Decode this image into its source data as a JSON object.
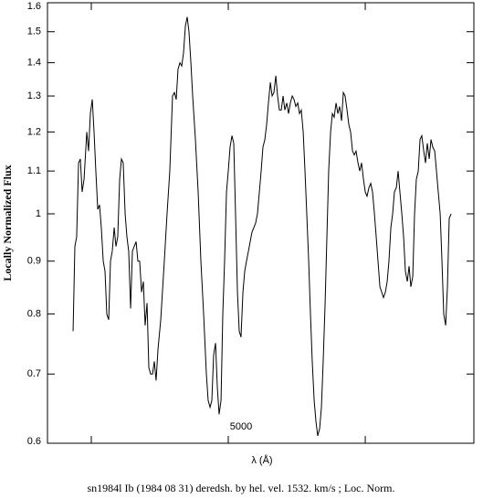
{
  "chart_data": {
    "type": "line",
    "ylabel": "Locally Normalized Flux",
    "xlabel": "λ (Å)",
    "caption": "sn1984l Ib (1984 08 31) deredsh. by hel. vel.  1532. km/s ;  Loc. Norm.",
    "log_y": true,
    "color": "#000000",
    "xlim": [
      3680,
      6793
    ],
    "xticks": [
      {
        "value": 4000,
        "label": null
      },
      5000,
      {
        "value": 6000,
        "label": null
      }
    ],
    "ylim": [
      0.6,
      1.6
    ],
    "yticks": [
      0.6,
      0.7,
      0.8,
      0.9,
      1,
      1.1,
      1.2,
      1.3,
      1.4,
      1.5,
      1.6
    ],
    "x": [
      3867,
      3880,
      3893,
      3907,
      3920,
      3933,
      3947,
      3967,
      3980,
      3993,
      4007,
      4020,
      4033,
      4047,
      4060,
      4073,
      4087,
      4100,
      4113,
      4127,
      4140,
      4153,
      4167,
      4180,
      4193,
      4207,
      4220,
      4233,
      4247,
      4260,
      4273,
      4287,
      4300,
      4313,
      4327,
      4340,
      4353,
      4367,
      4380,
      4393,
      4407,
      4420,
      4433,
      4447,
      4460,
      4473,
      4487,
      4507,
      4533,
      4553,
      4573,
      4593,
      4607,
      4620,
      4633,
      4647,
      4660,
      4673,
      4687,
      4700,
      4713,
      4727,
      4740,
      4760,
      4780,
      4800,
      4820,
      4840,
      4853,
      4867,
      4880,
      4893,
      4907,
      4920,
      4933,
      4947,
      4960,
      4973,
      4987,
      5000,
      5013,
      5027,
      5040,
      5053,
      5067,
      5080,
      5093,
      5107,
      5120,
      5133,
      5147,
      5160,
      5173,
      5187,
      5200,
      5213,
      5227,
      5240,
      5253,
      5267,
      5280,
      5293,
      5307,
      5320,
      5333,
      5347,
      5360,
      5373,
      5387,
      5400,
      5413,
      5427,
      5440,
      5453,
      5467,
      5480,
      5493,
      5507,
      5520,
      5533,
      5547,
      5560,
      5573,
      5587,
      5600,
      5613,
      5627,
      5640,
      5653,
      5667,
      5680,
      5693,
      5707,
      5720,
      5733,
      5747,
      5760,
      5773,
      5787,
      5800,
      5813,
      5827,
      5840,
      5853,
      5867,
      5880,
      5893,
      5907,
      5920,
      5933,
      5947,
      5960,
      5973,
      5987,
      6000,
      6013,
      6027,
      6040,
      6053,
      6067,
      6080,
      6093,
      6107,
      6120,
      6133,
      6147,
      6160,
      6173,
      6187,
      6200,
      6213,
      6227,
      6240,
      6253,
      6267,
      6280,
      6293,
      6307,
      6320,
      6333,
      6347,
      6360,
      6373,
      6387,
      6400,
      6413,
      6427,
      6440,
      6453,
      6467,
      6480,
      6493,
      6507,
      6520,
      6533,
      6547,
      6560,
      6573,
      6587,
      6600,
      6613,
      6627
    ],
    "values": [
      0.77,
      0.93,
      0.95,
      1.12,
      1.13,
      1.05,
      1.08,
      1.2,
      1.15,
      1.25,
      1.29,
      1.2,
      1.1,
      1.01,
      1.02,
      0.97,
      0.9,
      0.88,
      0.8,
      0.79,
      0.9,
      0.92,
      0.97,
      0.93,
      0.95,
      1.08,
      1.13,
      1.12,
      1.0,
      0.95,
      0.92,
      0.81,
      0.92,
      0.93,
      0.94,
      0.9,
      0.9,
      0.84,
      0.86,
      0.78,
      0.82,
      0.71,
      0.7,
      0.7,
      0.72,
      0.69,
      0.74,
      0.79,
      0.9,
      1.0,
      1.1,
      1.3,
      1.31,
      1.29,
      1.38,
      1.4,
      1.39,
      1.43,
      1.52,
      1.55,
      1.5,
      1.4,
      1.3,
      1.18,
      1.05,
      0.9,
      0.8,
      0.7,
      0.66,
      0.65,
      0.66,
      0.73,
      0.75,
      0.68,
      0.64,
      0.66,
      0.8,
      0.9,
      1.05,
      1.1,
      1.16,
      1.19,
      1.17,
      1.0,
      0.84,
      0.77,
      0.76,
      0.84,
      0.88,
      0.9,
      0.92,
      0.94,
      0.96,
      0.97,
      0.98,
      1.0,
      1.05,
      1.1,
      1.16,
      1.18,
      1.22,
      1.28,
      1.34,
      1.3,
      1.31,
      1.36,
      1.3,
      1.26,
      1.26,
      1.3,
      1.26,
      1.28,
      1.25,
      1.28,
      1.3,
      1.29,
      1.27,
      1.28,
      1.25,
      1.26,
      1.2,
      1.1,
      1.0,
      0.9,
      0.8,
      0.72,
      0.66,
      0.63,
      0.61,
      0.62,
      0.65,
      0.72,
      0.82,
      0.95,
      1.1,
      1.2,
      1.25,
      1.24,
      1.28,
      1.25,
      1.27,
      1.23,
      1.31,
      1.3,
      1.26,
      1.22,
      1.2,
      1.15,
      1.14,
      1.15,
      1.12,
      1.1,
      1.12,
      1.08,
      1.05,
      1.04,
      1.06,
      1.07,
      1.05,
      1.0,
      0.95,
      0.9,
      0.85,
      0.84,
      0.83,
      0.84,
      0.86,
      0.9,
      0.97,
      1.0,
      1.05,
      1.06,
      1.1,
      1.05,
      1.0,
      0.95,
      0.88,
      0.86,
      0.89,
      0.85,
      0.87,
      1.0,
      1.08,
      1.1,
      1.18,
      1.19,
      1.15,
      1.12,
      1.17,
      1.13,
      1.18,
      1.16,
      1.15,
      1.1,
      1.05,
      1.0,
      0.9,
      0.8,
      0.78,
      0.85,
      0.99,
      1.0
    ]
  }
}
